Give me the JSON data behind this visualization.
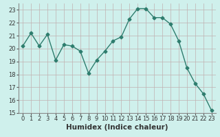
{
  "x": [
    0,
    1,
    2,
    3,
    4,
    5,
    6,
    7,
    8,
    9,
    10,
    11,
    12,
    13,
    14,
    15,
    16,
    17,
    18,
    19,
    20,
    21,
    22,
    23
  ],
  "y": [
    20.2,
    21.2,
    20.2,
    21.1,
    19.1,
    20.3,
    20.2,
    19.8,
    18.1,
    19.1,
    19.8,
    20.6,
    20.9,
    22.3,
    23.1,
    23.1,
    22.4,
    22.4,
    21.9,
    20.6,
    18.5,
    17.3,
    16.5,
    15.2
  ],
  "line_color": "#2e7d6e",
  "marker": "D",
  "marker_size": 2.5,
  "bg_color": "#cff0ec",
  "grid_color": "#c0b0b0",
  "xlabel": "Humidex (Indice chaleur)",
  "xlim": [
    -0.5,
    23.5
  ],
  "ylim": [
    15,
    23.5
  ],
  "yticks": [
    15,
    16,
    17,
    18,
    19,
    20,
    21,
    22,
    23
  ],
  "xticks": [
    0,
    1,
    2,
    3,
    4,
    5,
    6,
    7,
    8,
    9,
    10,
    11,
    12,
    13,
    14,
    15,
    16,
    17,
    18,
    19,
    20,
    21,
    22,
    23
  ],
  "tick_fontsize": 6.0,
  "xlabel_fontsize": 7.5,
  "line_width": 1.0
}
